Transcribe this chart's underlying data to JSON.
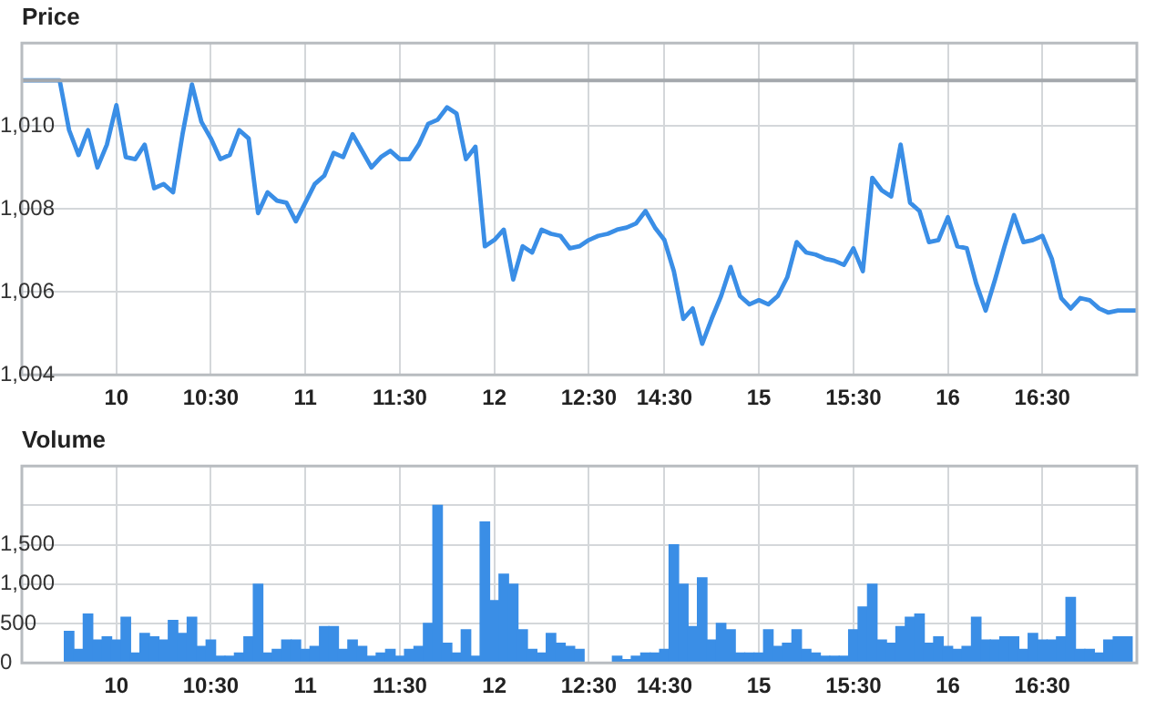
{
  "chart_data": [
    {
      "type": "line",
      "title": "Price",
      "categories": [
        null,
        null,
        null,
        null,
        null,
        null,
        null,
        null,
        null,
        null,
        "10",
        null,
        null,
        null,
        null,
        null,
        null,
        null,
        null,
        null,
        "10:30",
        null,
        null,
        null,
        null,
        null,
        null,
        null,
        null,
        null,
        "11",
        null,
        null,
        null,
        null,
        null,
        null,
        null,
        null,
        null,
        "11:30",
        null,
        null,
        null,
        null,
        null,
        null,
        null,
        null,
        null,
        "12",
        null,
        null,
        null,
        null,
        null,
        null,
        null,
        null,
        null,
        "12:30",
        null,
        null,
        null,
        null,
        null,
        null,
        null,
        "14:30",
        null,
        null,
        null,
        null,
        null,
        null,
        null,
        null,
        null,
        "15",
        null,
        null,
        null,
        null,
        null,
        null,
        null,
        null,
        null,
        "15:30",
        null,
        null,
        null,
        null,
        null,
        null,
        null,
        null,
        null,
        "16",
        null,
        null,
        null,
        null,
        null,
        null,
        null,
        null,
        null,
        "16:30",
        null,
        null,
        null,
        null,
        null,
        null,
        null,
        null,
        null,
        null
      ],
      "series": [
        {
          "color": "#3a8ee6",
          "values": [
            1011.1,
            1011.1,
            1011.1,
            1011.1,
            1011.1,
            1009.9,
            1009.3,
            1009.9,
            1009.0,
            1009.55,
            1010.5,
            1009.25,
            1009.2,
            1009.55,
            1008.5,
            1008.6,
            1008.4,
            1009.8,
            1011.0,
            1010.1,
            1009.7,
            1009.2,
            1009.3,
            1009.9,
            1009.7,
            1007.9,
            1008.4,
            1008.2,
            1008.15,
            1007.7,
            1008.15,
            1008.6,
            1008.8,
            1009.35,
            1009.25,
            1009.8,
            1009.4,
            1009.0,
            1009.25,
            1009.4,
            1009.2,
            1009.2,
            1009.55,
            1010.05,
            1010.15,
            1010.45,
            1010.3,
            1009.2,
            1009.5,
            1007.1,
            1007.25,
            1007.5,
            1006.3,
            1007.1,
            1006.95,
            1007.5,
            1007.4,
            1007.35,
            1007.05,
            1007.1,
            1007.25,
            1007.35,
            1007.4,
            1007.5,
            1007.55,
            1007.65,
            1007.95,
            1007.55,
            1007.25,
            1006.5,
            1005.35,
            1005.6,
            1004.75,
            1005.35,
            1005.9,
            1006.6,
            1005.9,
            1005.7,
            1005.8,
            1005.7,
            1005.9,
            1006.35,
            1007.2,
            1006.95,
            1006.9,
            1006.8,
            1006.75,
            1006.65,
            1007.05,
            1006.5,
            1008.75,
            1008.45,
            1008.3,
            1009.55,
            1008.15,
            1007.95,
            1007.2,
            1007.25,
            1007.8,
            1007.1,
            1007.05,
            1006.2,
            1005.55,
            1006.3,
            1007.1,
            1007.85,
            1007.2,
            1007.25,
            1007.35,
            1006.8,
            1005.85,
            1005.6,
            1005.85,
            1005.8,
            1005.6,
            1005.5,
            1005.55,
            1005.55,
            1005.55
          ]
        }
      ],
      "ylim": [
        1004,
        1012
      ],
      "yticks": [
        {
          "value": 1004,
          "label": "1,004"
        },
        {
          "value": 1006,
          "label": "1,006"
        },
        {
          "value": 1008,
          "label": "1,008"
        },
        {
          "value": 1010,
          "label": "1,010"
        },
        {
          "value": 1012,
          "label": null
        }
      ],
      "ref_lines": [
        {
          "axis": "y",
          "value": 1011.1,
          "color": "#a4a8ad"
        }
      ],
      "grid": true,
      "legend": false,
      "marker": "none"
    },
    {
      "type": "bar",
      "title": "Volume",
      "categories": [
        null,
        null,
        null,
        null,
        null,
        null,
        null,
        null,
        null,
        null,
        "10",
        null,
        null,
        null,
        null,
        null,
        null,
        null,
        null,
        null,
        "10:30",
        null,
        null,
        null,
        null,
        null,
        null,
        null,
        null,
        null,
        "11",
        null,
        null,
        null,
        null,
        null,
        null,
        null,
        null,
        null,
        "11:30",
        null,
        null,
        null,
        null,
        null,
        null,
        null,
        null,
        null,
        "12",
        null,
        null,
        null,
        null,
        null,
        null,
        null,
        null,
        null,
        "12:30",
        null,
        null,
        null,
        null,
        null,
        null,
        null,
        "14:30",
        null,
        null,
        null,
        null,
        null,
        null,
        null,
        null,
        null,
        "15",
        null,
        null,
        null,
        null,
        null,
        null,
        null,
        null,
        null,
        "15:30",
        null,
        null,
        null,
        null,
        null,
        null,
        null,
        null,
        null,
        "16",
        null,
        null,
        null,
        null,
        null,
        null,
        null,
        null,
        null,
        "16:30",
        null,
        null,
        null,
        null,
        null,
        null,
        null,
        null,
        null,
        null
      ],
      "series": [
        {
          "color": "#3a8ee6",
          "values": [
            0,
            0,
            0,
            0,
            0,
            400,
            170,
            620,
            290,
            330,
            290,
            580,
            125,
            375,
            330,
            290,
            540,
            375,
            580,
            210,
            290,
            85,
            85,
            125,
            330,
            1000,
            125,
            170,
            290,
            290,
            170,
            210,
            460,
            460,
            170,
            290,
            210,
            85,
            125,
            170,
            85,
            170,
            210,
            500,
            2000,
            250,
            125,
            420,
            85,
            1790,
            790,
            1125,
            1000,
            420,
            170,
            125,
            375,
            250,
            210,
            170,
            0,
            0,
            0,
            85,
            40,
            85,
            125,
            125,
            170,
            1500,
            1000,
            460,
            1080,
            290,
            500,
            420,
            125,
            125,
            125,
            420,
            210,
            250,
            420,
            170,
            125,
            85,
            85,
            85,
            420,
            710,
            1000,
            290,
            250,
            460,
            580,
            620,
            250,
            330,
            210,
            170,
            210,
            580,
            290,
            290,
            330,
            330,
            170,
            375,
            290,
            290,
            330,
            830,
            170,
            170,
            125,
            290,
            330,
            330,
            null
          ]
        }
      ],
      "ylim": [
        0,
        2500
      ],
      "yticks": [
        0,
        500,
        {
          "value": 1000,
          "label": "1,000"
        },
        {
          "value": 1500,
          "label": "1,500"
        },
        {
          "value": 2000,
          "label": null
        },
        {
          "value": 2500,
          "label": null
        }
      ],
      "grid": true,
      "legend": false
    }
  ]
}
